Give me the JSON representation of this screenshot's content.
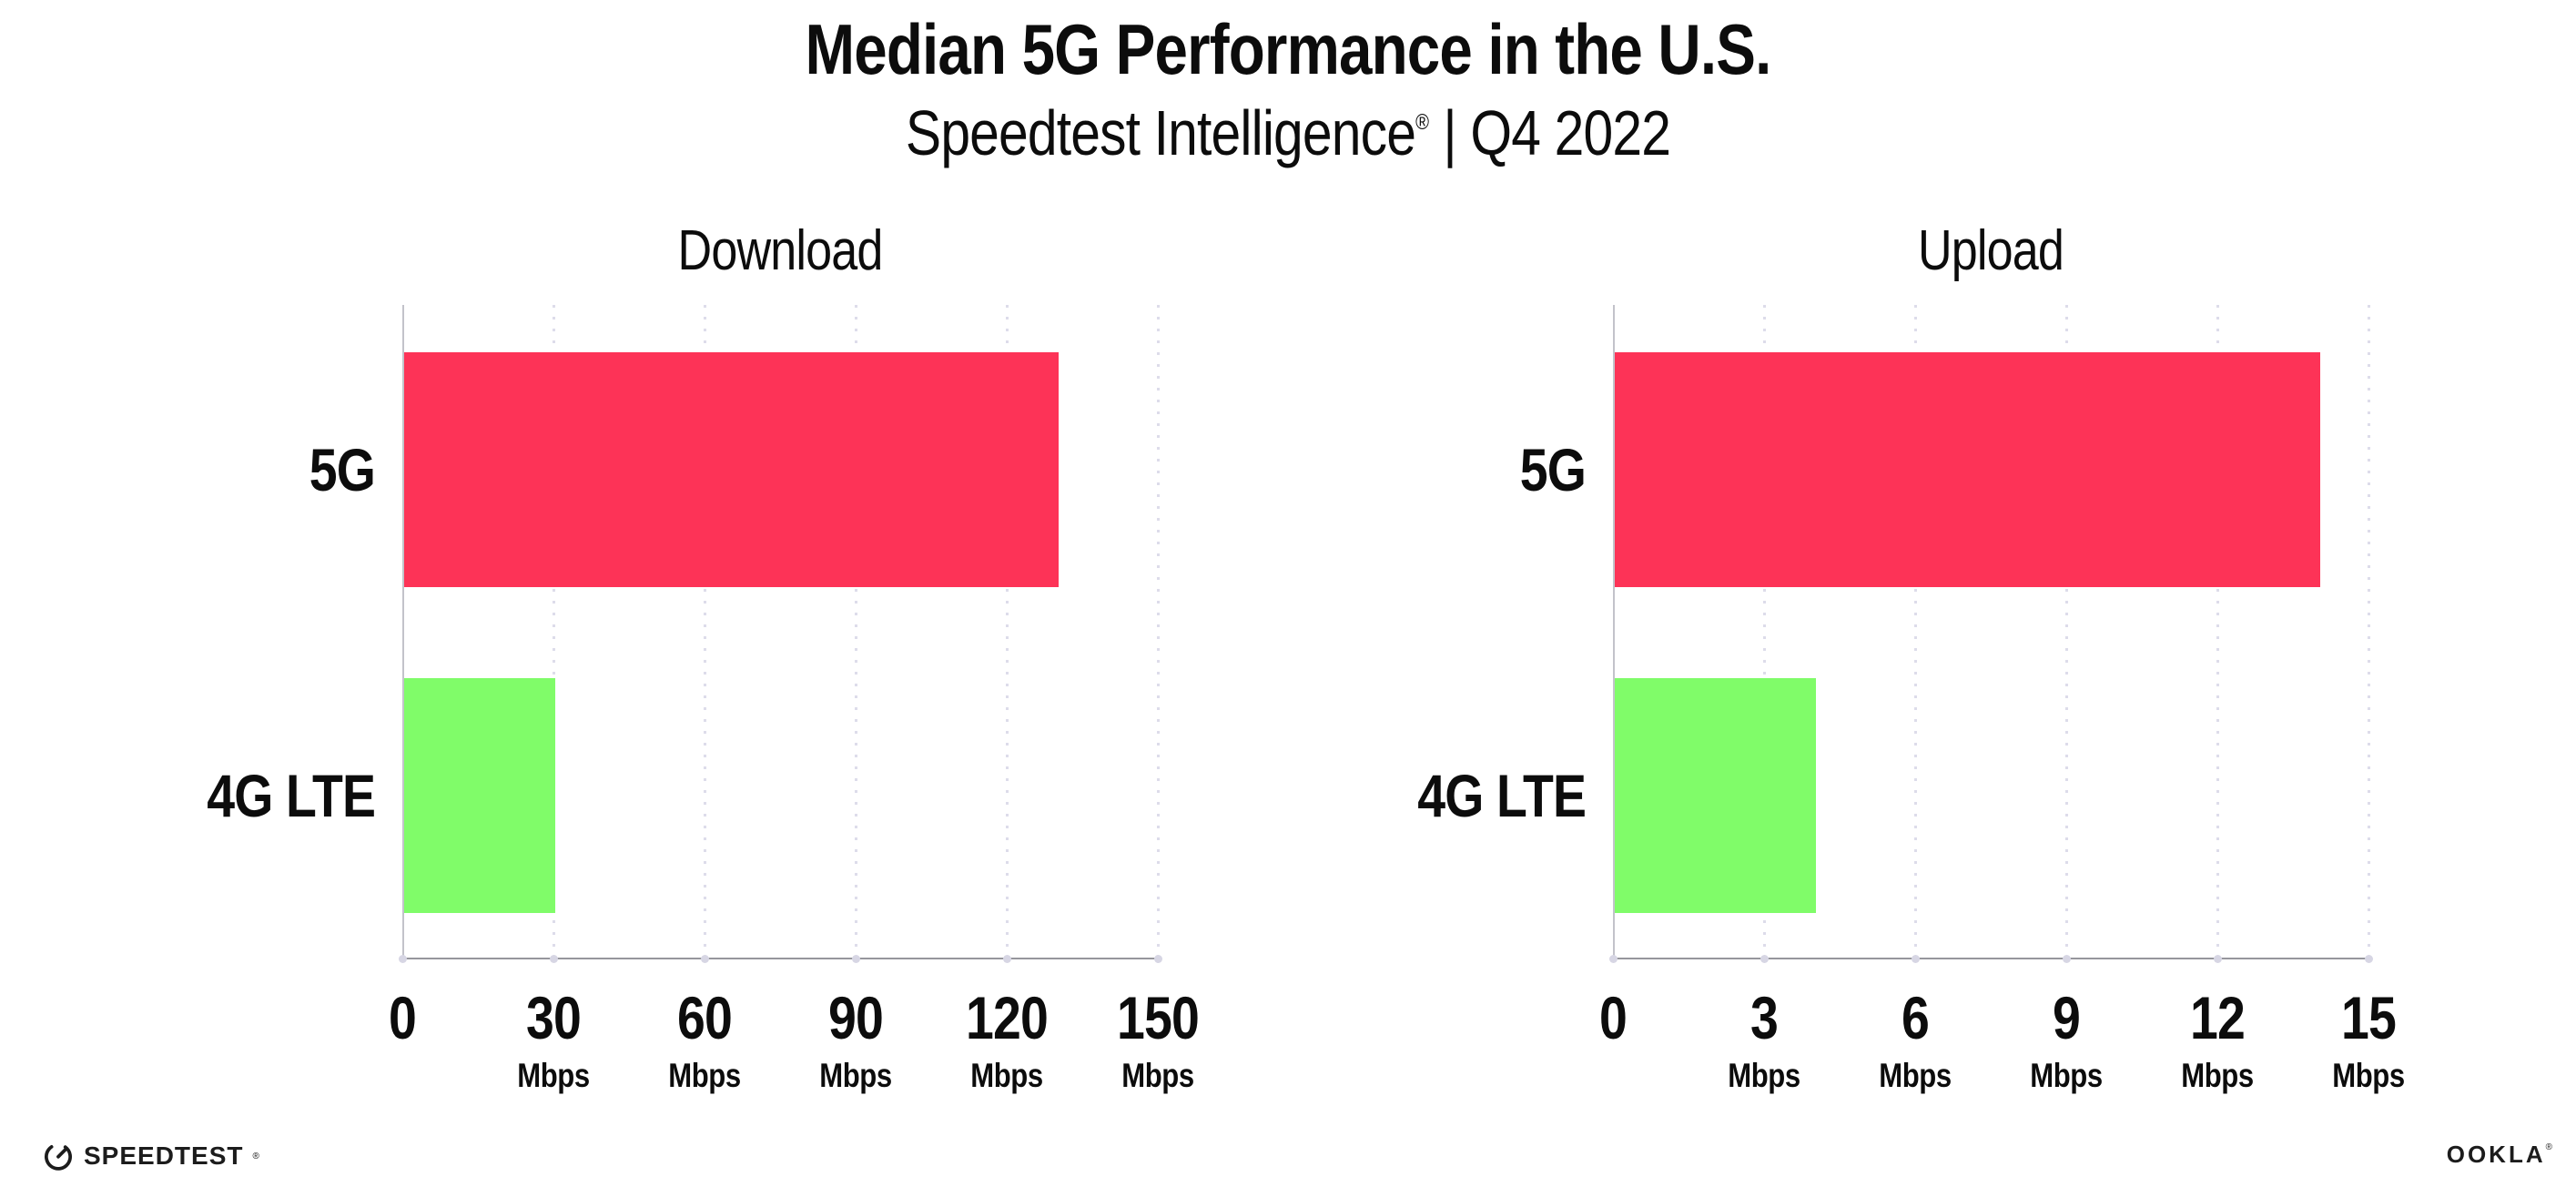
{
  "header": {
    "title": "Median 5G Performance in the U.S.",
    "subtitle_brand": "Speedtest Intelligence",
    "subtitle_reg": "®",
    "subtitle_rest": " | Q4 2022"
  },
  "chart_data": [
    {
      "type": "bar",
      "orientation": "horizontal",
      "title": "Download",
      "categories": [
        "5G",
        "4G LTE"
      ],
      "values": [
        130,
        30
      ],
      "unit": "Mbps",
      "xlim": [
        0,
        150
      ],
      "xticks": [
        {
          "label": "0",
          "unit": ""
        },
        {
          "label": "30",
          "unit": "Mbps"
        },
        {
          "label": "60",
          "unit": "Mbps"
        },
        {
          "label": "90",
          "unit": "Mbps"
        },
        {
          "label": "120",
          "unit": "Mbps"
        },
        {
          "label": "150",
          "unit": "Mbps"
        }
      ],
      "bar_colors": [
        "#fd3357",
        "#80fc69"
      ],
      "grid": true,
      "legend": "none"
    },
    {
      "type": "bar",
      "orientation": "horizontal",
      "title": "Upload",
      "categories": [
        "5G",
        "4G LTE"
      ],
      "values": [
        14,
        4
      ],
      "unit": "Mbps",
      "xlim": [
        0,
        15
      ],
      "xticks": [
        {
          "label": "0",
          "unit": ""
        },
        {
          "label": "3",
          "unit": "Mbps"
        },
        {
          "label": "6",
          "unit": "Mbps"
        },
        {
          "label": "9",
          "unit": "Mbps"
        },
        {
          "label": "12",
          "unit": "Mbps"
        },
        {
          "label": "15",
          "unit": "Mbps"
        }
      ],
      "bar_colors": [
        "#fd3357",
        "#80fc69"
      ],
      "grid": true,
      "legend": "none"
    }
  ],
  "footer": {
    "speedtest_label": "SPEEDTEST",
    "speedtest_reg": "®",
    "ookla_label": "OOKLA",
    "ookla_reg": "®"
  },
  "colors": {
    "bar_5g": "#fd3357",
    "bar_4g_lte": "#80fc69",
    "axis_line": "#96969c",
    "y_axis_line": "#c3c3ca",
    "grid_dot": "#dddcea",
    "text": "#0c0c0c",
    "background": "#ffffff"
  }
}
